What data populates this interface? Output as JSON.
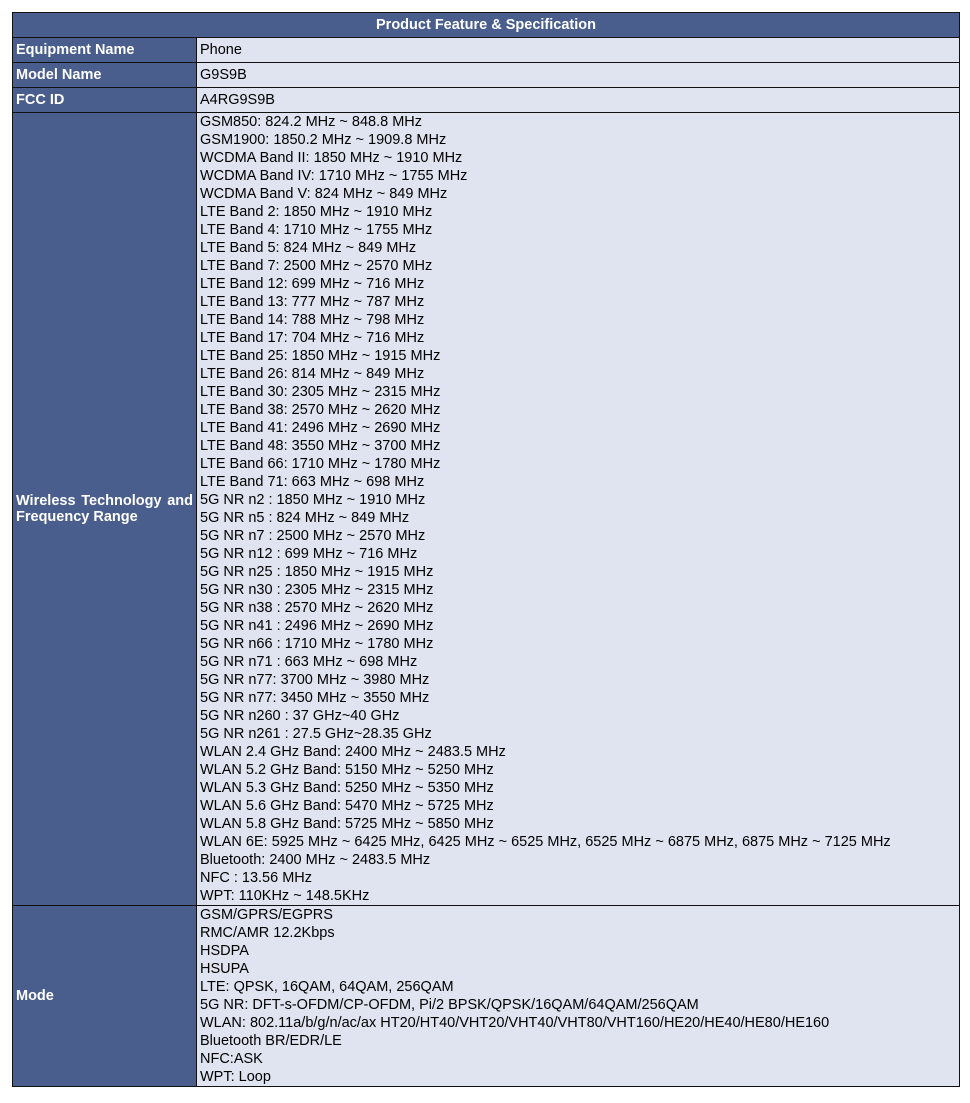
{
  "title": "Product Feature & Specification",
  "rows": [
    {
      "label": "Equipment Name",
      "value": "Phone"
    },
    {
      "label": "Model Name",
      "value": "G9S9B"
    },
    {
      "label": "FCC ID",
      "value": "A4RG9S9B"
    }
  ],
  "wireless": {
    "label": "Wireless Technology and Frequency Range",
    "lines": [
      "GSM850: 824.2 MHz ~ 848.8 MHz",
      "GSM1900: 1850.2 MHz ~ 1909.8 MHz",
      "WCDMA Band II: 1850 MHz ~ 1910 MHz",
      "WCDMA Band IV: 1710 MHz ~ 1755 MHz",
      "WCDMA Band V: 824 MHz ~ 849 MHz",
      "LTE Band 2: 1850 MHz ~ 1910 MHz",
      "LTE Band 4: 1710 MHz ~ 1755 MHz",
      "LTE Band 5: 824 MHz ~ 849 MHz",
      "LTE Band 7: 2500 MHz ~ 2570 MHz",
      "LTE Band 12: 699 MHz ~ 716 MHz",
      "LTE Band 13: 777 MHz ~ 787 MHz",
      "LTE Band 14: 788 MHz ~ 798 MHz",
      "LTE Band 17: 704 MHz ~ 716 MHz",
      "LTE Band 25: 1850 MHz ~ 1915 MHz",
      "LTE Band 26: 814 MHz ~ 849 MHz",
      "LTE Band 30: 2305 MHz ~ 2315 MHz",
      "LTE Band 38: 2570 MHz ~ 2620 MHz",
      "LTE Band 41: 2496 MHz ~ 2690 MHz",
      "LTE Band 48: 3550 MHz ~ 3700 MHz",
      "LTE Band 66: 1710 MHz ~ 1780 MHz",
      "LTE Band 71: 663 MHz ~ 698 MHz",
      "5G NR n2 : 1850 MHz ~ 1910 MHz",
      "5G NR n5 : 824 MHz ~ 849 MHz",
      "5G NR n7 : 2500 MHz ~ 2570 MHz",
      "5G NR n12 : 699 MHz ~ 716 MHz",
      "5G NR n25 : 1850 MHz ~ 1915 MHz",
      "5G NR n30 : 2305 MHz ~ 2315 MHz",
      "5G NR n38 : 2570 MHz ~ 2620 MHz",
      "5G NR n41 : 2496 MHz ~ 2690 MHz",
      "5G NR n66 : 1710 MHz ~ 1780 MHz",
      "5G NR n71 : 663 MHz ~ 698 MHz",
      "5G NR n77: 3700 MHz ~ 3980 MHz",
      "5G NR n77: 3450 MHz ~ 3550 MHz",
      "5G NR n260 : 37 GHz~40 GHz",
      "5G NR n261 : 27.5 GHz~28.35 GHz",
      "WLAN 2.4 GHz Band: 2400 MHz ~ 2483.5 MHz",
      "WLAN 5.2 GHz Band: 5150 MHz ~ 5250 MHz",
      "WLAN 5.3 GHz Band: 5250 MHz ~ 5350 MHz",
      "WLAN 5.6 GHz Band: 5470 MHz ~ 5725 MHz",
      "WLAN 5.8 GHz Band: 5725 MHz ~ 5850 MHz",
      "WLAN 6E: 5925 MHz ~ 6425 MHz, 6425 MHz ~ 6525 MHz, 6525 MHz ~ 6875 MHz, 6875 MHz ~ 7125 MHz",
      "Bluetooth: 2400 MHz ~ 2483.5 MHz",
      "NFC : 13.56 MHz",
      "WPT: 110KHz ~ 148.5KHz"
    ]
  },
  "mode": {
    "label": "Mode",
    "lines": [
      "GSM/GPRS/EGPRS",
      "RMC/AMR 12.2Kbps",
      "HSDPA",
      "HSUPA",
      "LTE: QPSK, 16QAM, 64QAM, 256QAM",
      "5G NR: DFT-s-OFDM/CP-OFDM, Pi/2 BPSK/QPSK/16QAM/64QAM/256QAM",
      "WLAN: 802.11a/b/g/n/ac/ax HT20/HT40/VHT20/VHT40/VHT80/VHT160/HE20/HE40/HE80/HE160",
      "Bluetooth BR/EDR/LE",
      "NFC:ASK",
      "WPT: Loop"
    ]
  }
}
